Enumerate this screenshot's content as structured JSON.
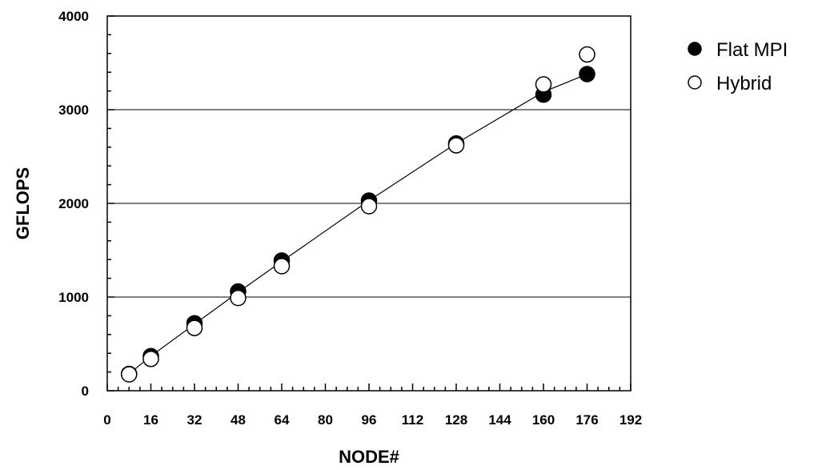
{
  "chart_data": {
    "type": "scatter",
    "xlabel": "NODE#",
    "ylabel": "GFLOPS",
    "xlim": [
      0,
      192
    ],
    "ylim": [
      0,
      4000
    ],
    "x_ticks": [
      0,
      16,
      32,
      48,
      64,
      80,
      96,
      112,
      128,
      144,
      160,
      176,
      192
    ],
    "y_ticks": [
      0,
      1000,
      2000,
      3000,
      4000
    ],
    "x_minor_step": 4,
    "y_minor_step": 200,
    "grid": "horizontal major lines at 1000, 2000, 3000",
    "legend_position": "top-right, outside plot",
    "series": [
      {
        "name": "Flat MPI",
        "marker": "filled-circle",
        "color": "#000000",
        "x": [
          8,
          16,
          32,
          48,
          64,
          96,
          128,
          160,
          176
        ],
        "y": [
          180,
          370,
          720,
          1060,
          1390,
          2030,
          2640,
          3160,
          3380
        ]
      },
      {
        "name": "Hybrid",
        "marker": "open-circle",
        "color": "#000000",
        "x": [
          8,
          16,
          32,
          48,
          64,
          96,
          128,
          160,
          176
        ],
        "y": [
          175,
          340,
          670,
          990,
          1330,
          1970,
          2620,
          3270,
          3590
        ]
      }
    ],
    "fit_line": {
      "x": [
        8,
        16,
        32,
        48,
        64,
        96,
        128,
        160,
        176
      ],
      "y": [
        180,
        370,
        710,
        1050,
        1380,
        2030,
        2640,
        3190,
        3380
      ]
    }
  }
}
